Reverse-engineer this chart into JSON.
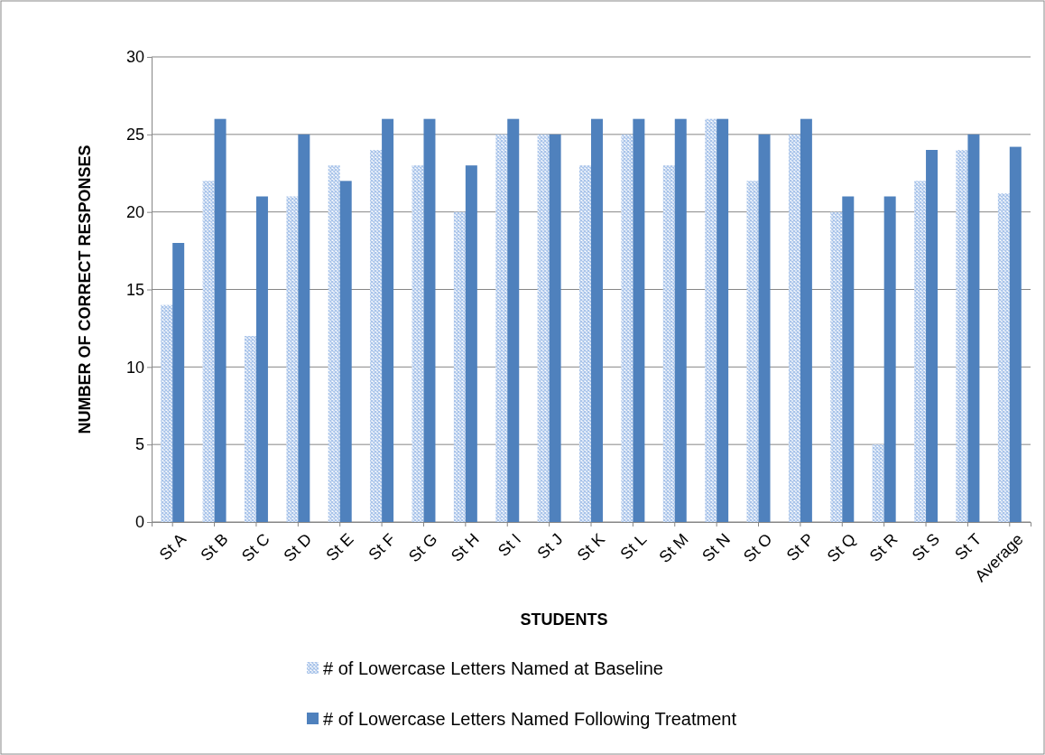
{
  "chart_data": {
    "type": "bar",
    "xlabel": "STUDENTS",
    "ylabel": "NUMBER OF CORRECT RESPONSES",
    "categories": [
      "St A",
      "St B",
      "St C",
      "St D",
      "St E",
      "St F",
      "St G",
      "St H",
      "St I",
      "St J",
      "St K",
      "St L",
      "St M",
      "St N",
      "St O",
      "St P",
      "St Q",
      "St R",
      "St S",
      "St T",
      "Average"
    ],
    "series": [
      {
        "name": "# of Lowercase Letters Named at Baseline",
        "color": "#a9c4ea",
        "values": [
          14,
          22,
          12,
          21,
          23,
          24,
          23,
          20,
          25,
          25,
          23,
          25,
          23,
          26,
          22,
          25,
          20,
          5,
          22,
          24,
          21.2
        ]
      },
      {
        "name": "# of Lowercase Letters Named Following Treatment",
        "color": "#4f81bd",
        "values": [
          18,
          26,
          21,
          25,
          22,
          26,
          26,
          23,
          26,
          25,
          26,
          26,
          26,
          26,
          25,
          26,
          21,
          21,
          24,
          25,
          24.2
        ]
      }
    ],
    "ylim": [
      0,
      30
    ],
    "yticks": [
      0,
      5,
      10,
      15,
      20,
      25,
      30
    ],
    "grid": "y",
    "legend": "bottom"
  }
}
